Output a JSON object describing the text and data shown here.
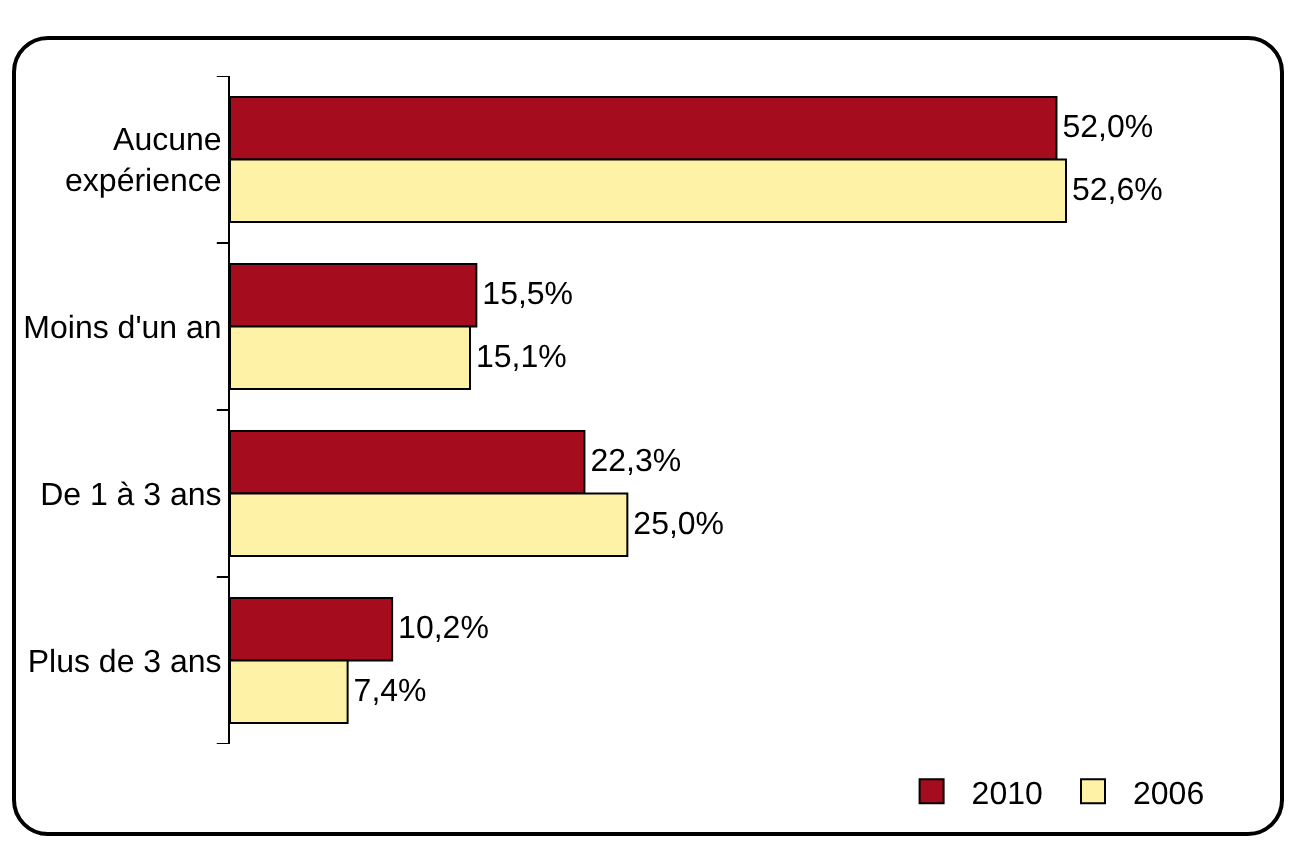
{
  "chart_data": {
    "type": "bar",
    "orientation": "horizontal",
    "categories": [
      "Aucune expérience",
      "Moins d'un an",
      "De 1 à 3 ans",
      "Plus de 3 ans"
    ],
    "series": [
      {
        "name": "2010",
        "color": "#a50d1e",
        "values": [
          52.0,
          15.5,
          22.3,
          10.2
        ],
        "value_labels": [
          "52,0%",
          "15,5%",
          "22,3%",
          "10,2%"
        ]
      },
      {
        "name": "2006",
        "color": "#fdf2a6",
        "values": [
          52.6,
          15.1,
          25.0,
          7.4
        ],
        "value_labels": [
          "52,6%",
          "15,1%",
          "25,0%",
          "7,4%"
        ]
      }
    ],
    "legend": "bottom right",
    "grid": false
  }
}
